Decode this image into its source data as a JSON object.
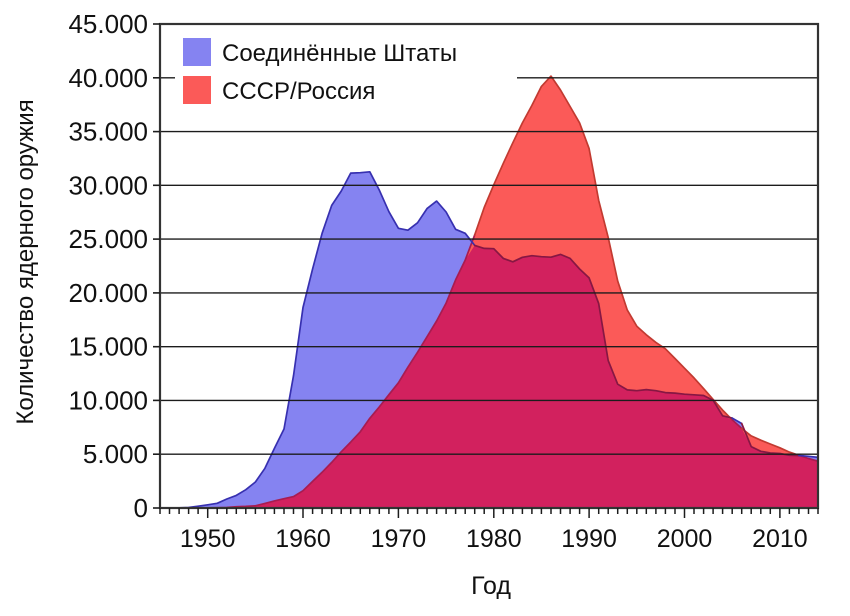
{
  "chart_data": {
    "type": "area",
    "title": "",
    "xlabel": "Год",
    "ylabel": "Количество ядерного оружия",
    "x_range": [
      1945,
      2014
    ],
    "y_range": [
      0,
      45000
    ],
    "x_major_ticks": [
      1950,
      1960,
      1970,
      1980,
      1990,
      2000,
      2010
    ],
    "x_minor_tick_step": 1,
    "y_ticks": [
      0,
      5000,
      10000,
      15000,
      20000,
      25000,
      30000,
      35000,
      40000,
      45000
    ],
    "y_tick_labels": [
      "0",
      "5.000",
      "10.000",
      "15.000",
      "20.000",
      "25.000",
      "30.000",
      "35.000",
      "40.000",
      "45.000"
    ],
    "grid": "horizontal",
    "legend_position": "top-left",
    "years": [
      1945,
      1946,
      1947,
      1948,
      1949,
      1950,
      1951,
      1952,
      1953,
      1954,
      1955,
      1956,
      1957,
      1958,
      1959,
      1960,
      1961,
      1962,
      1963,
      1964,
      1965,
      1966,
      1967,
      1968,
      1969,
      1970,
      1971,
      1972,
      1973,
      1974,
      1975,
      1976,
      1977,
      1978,
      1979,
      1980,
      1981,
      1982,
      1983,
      1984,
      1985,
      1986,
      1987,
      1988,
      1989,
      1990,
      1991,
      1992,
      1993,
      1994,
      1995,
      1996,
      1997,
      1998,
      1999,
      2000,
      2001,
      2002,
      2003,
      2004,
      2005,
      2006,
      2007,
      2008,
      2009,
      2010,
      2011,
      2012,
      2013,
      2014
    ],
    "series": [
      {
        "name": "Соединённые Штаты",
        "color": "#8583f1",
        "stroke": "#3730b0",
        "stroke_covered": "#871743",
        "values": [
          2,
          9,
          13,
          50,
          170,
          299,
          438,
          841,
          1169,
          1703,
          2422,
          3692,
          5543,
          7345,
          12298,
          18638,
          22229,
          25540,
          28133,
          29463,
          31139,
          31175,
          31255,
          29561,
          27552,
          26008,
          25830,
          26516,
          27835,
          28537,
          27519,
          25914,
          25542,
          24418,
          24138,
          24104,
          23208,
          22886,
          23305,
          23459,
          23368,
          23317,
          23575,
          23205,
          22217,
          21392,
          19008,
          13708,
          11511,
          10979,
          10904,
          11011,
          10903,
          10732,
          10685,
          10577,
          10526,
          10457,
          10027,
          8570,
          8360,
          7853,
          5709,
          5273,
          5113,
          5066,
          4897,
          4881,
          4804,
          4717
        ]
      },
      {
        "name": "СССР/Россия",
        "color": "#fb5a58",
        "stroke": "#c23a31",
        "stroke_covered": "#a81c50",
        "values": [
          null,
          null,
          null,
          null,
          1,
          5,
          25,
          50,
          120,
          150,
          200,
          426,
          660,
          869,
          1060,
          1605,
          2471,
          3322,
          4238,
          5221,
          6129,
          7089,
          8339,
          9399,
          10538,
          11643,
          13092,
          14478,
          15915,
          17385,
          19055,
          21205,
          23044,
          25393,
          27935,
          30062,
          32049,
          33952,
          35804,
          37431,
          39197,
          40159,
          38859,
          37333,
          35805,
          33417,
          28595,
          25155,
          21101,
          18399,
          16900,
          16100,
          15400,
          14800,
          13900,
          13000,
          12100,
          11100,
          10100,
          9100,
          8200,
          7400,
          6700,
          6300,
          5950,
          5600,
          5200,
          4900,
          4600,
          4350
        ]
      }
    ],
    "overlap_color": "#d2215e",
    "frame_color": "#333333",
    "grid_color": "#1c1c1c",
    "text_color": "#111111"
  }
}
